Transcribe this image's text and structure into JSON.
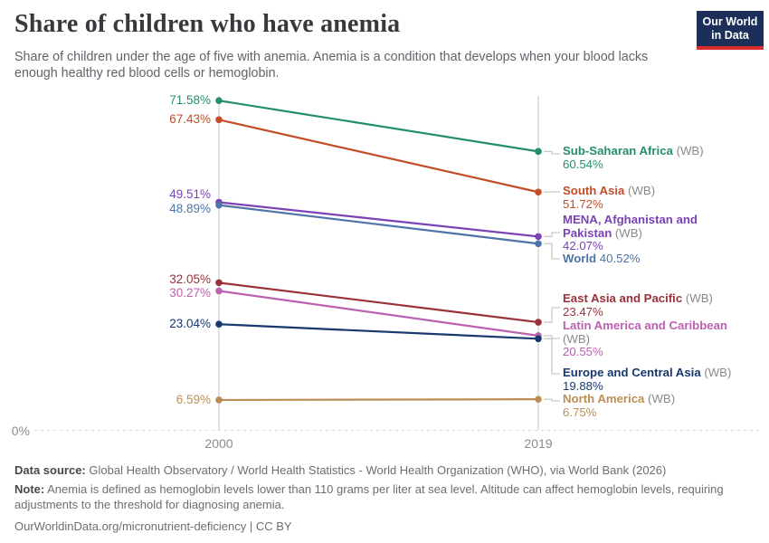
{
  "header": {
    "title": "Share of children who have anemia",
    "subtitle": "Share of children under the age of five with anemia. Anemia is a condition that develops when your blood lacks enough healthy red blood cells or hemoglobin.",
    "logo": {
      "line1": "Our World",
      "line2": "in Data",
      "bg": "#1B2F58",
      "stripe": "#D7302C"
    }
  },
  "chart_data": {
    "type": "line",
    "x": [
      "2000",
      "2019"
    ],
    "y_zero_label": "0%",
    "ylim": [
      0,
      73
    ],
    "grid": "vertical-at-ticks-plus-dashed-zero-line",
    "legend_position": "right",
    "series": [
      {
        "name": "Sub-Saharan Africa",
        "name_lines": [
          "Sub-Saharan Africa"
        ],
        "qualifier": "(WB)",
        "color": "#238F6A",
        "values": [
          71.58,
          60.54
        ],
        "start_label": "71.58%",
        "end_label": "60.54%"
      },
      {
        "name": "South Asia",
        "name_lines": [
          "South Asia"
        ],
        "qualifier": "(WB)",
        "color": "#C24D28",
        "values": [
          67.43,
          51.72
        ],
        "start_label": "67.43%",
        "end_label": "51.72%"
      },
      {
        "name": "MENA, Afghanistan and Pakistan",
        "name_lines": [
          "MENA, Afghanistan and",
          "Pakistan"
        ],
        "qualifier": "(WB)",
        "color": "#7B42B5",
        "values": [
          49.51,
          42.07
        ],
        "start_label": "49.51%",
        "end_label": "42.07%"
      },
      {
        "name": "World",
        "name_lines": [
          "World"
        ],
        "qualifier": "",
        "color": "#4E74A7",
        "values": [
          48.89,
          40.52
        ],
        "start_label": "48.89%",
        "end_label": "40.52%",
        "inline_value": true
      },
      {
        "name": "East Asia and Pacific",
        "name_lines": [
          "East Asia and Pacific"
        ],
        "qualifier": "(WB)",
        "color": "#9A3139",
        "values": [
          32.05,
          23.47
        ],
        "start_label": "32.05%",
        "end_label": "23.47%"
      },
      {
        "name": "Latin America and Caribbean",
        "name_lines": [
          "Latin America and Caribbean"
        ],
        "qualifier": "(WB)",
        "color": "#BC60B0",
        "values": [
          30.27,
          20.55
        ],
        "start_label": "30.27%",
        "end_label": "20.55%",
        "qualifier_own_line": true
      },
      {
        "name": "Europe and Central Asia",
        "name_lines": [
          "Europe and Central Asia"
        ],
        "qualifier": "(WB)",
        "color": "#17396D",
        "values": [
          23.04,
          19.88
        ],
        "start_label": "23.04%",
        "end_label": "19.88%"
      },
      {
        "name": "North America",
        "name_lines": [
          "North America"
        ],
        "qualifier": "(WB)",
        "color": "#BC8E55",
        "values": [
          6.59,
          6.75
        ],
        "start_label": "6.59%",
        "end_label": "6.75%"
      }
    ]
  },
  "footer": {
    "datasource_label": "Data source:",
    "datasource_text": "Global Health Observatory / World Health Statistics - World Health Organization (WHO), via World Bank (2026)",
    "note_label": "Note:",
    "note_text": "Anemia is defined as hemoglobin levels lower than 110 grams per liter at sea level. Altitude can affect hemoglobin levels, requiring adjustments to the threshold for diagnosing anemia.",
    "link": "OurWorldinData.org/micronutrient-deficiency | CC BY"
  }
}
